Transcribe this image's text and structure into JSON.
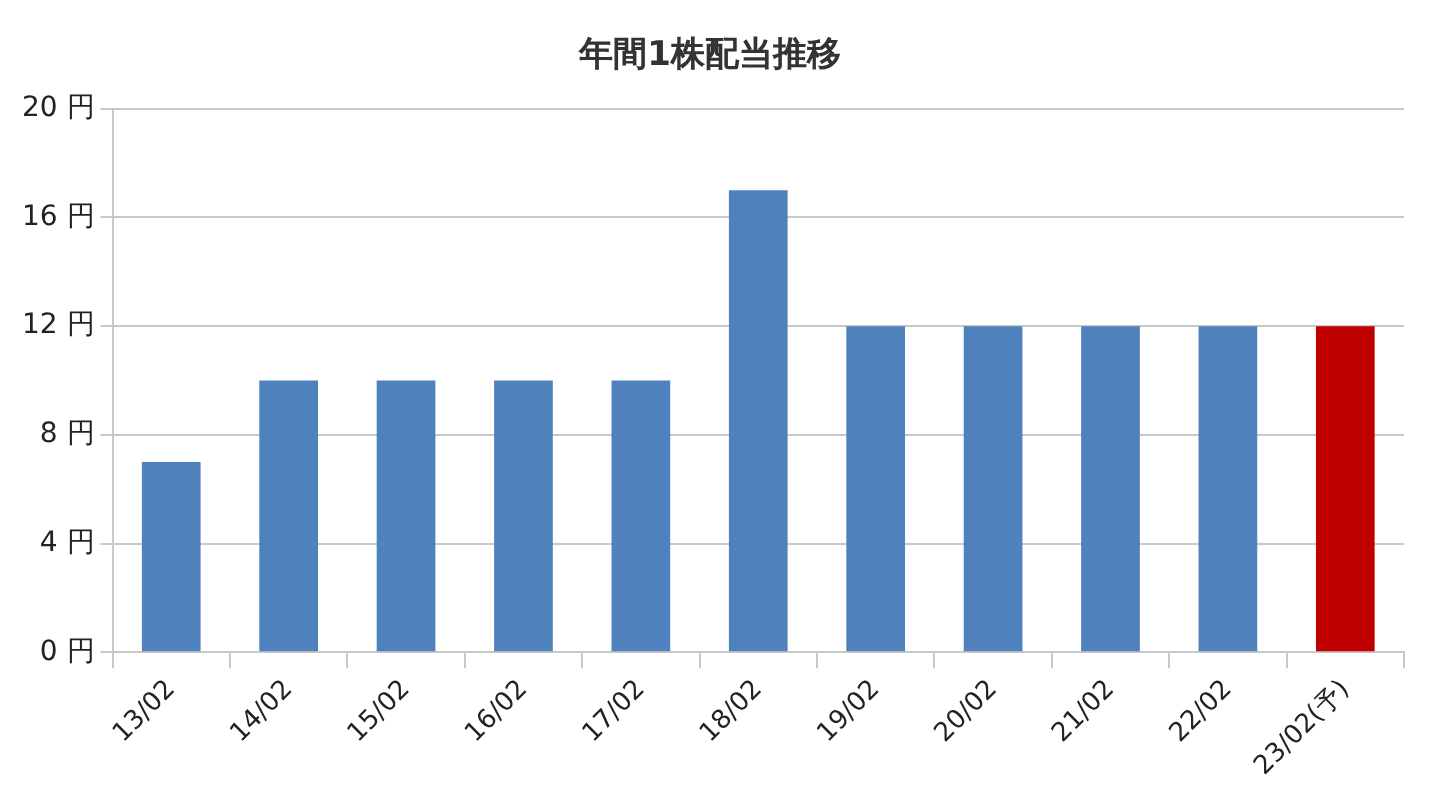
{
  "chart_data": {
    "type": "bar",
    "title": "年間1株配当推移",
    "categories": [
      "13/02",
      "14/02",
      "15/02",
      "16/02",
      "17/02",
      "18/02",
      "19/02",
      "20/02",
      "21/02",
      "22/02",
      "23/02(予)"
    ],
    "values": [
      7,
      10,
      10,
      10,
      10,
      17,
      12,
      12,
      12,
      12,
      12
    ],
    "colors": [
      "#4f81bd",
      "#4f81bd",
      "#4f81bd",
      "#4f81bd",
      "#4f81bd",
      "#4f81bd",
      "#4f81bd",
      "#4f81bd",
      "#4f81bd",
      "#4f81bd",
      "#c00000"
    ],
    "ylim": [
      0,
      20
    ],
    "yticks": [
      {
        "value": 0,
        "label": "0 円"
      },
      {
        "value": 4,
        "label": "4 円"
      },
      {
        "value": 8,
        "label": "8 円"
      },
      {
        "value": 12,
        "label": "12 円"
      },
      {
        "value": 16,
        "label": "16 円"
      },
      {
        "value": 20,
        "label": "20 円"
      }
    ],
    "grid": "y",
    "legend": false
  }
}
